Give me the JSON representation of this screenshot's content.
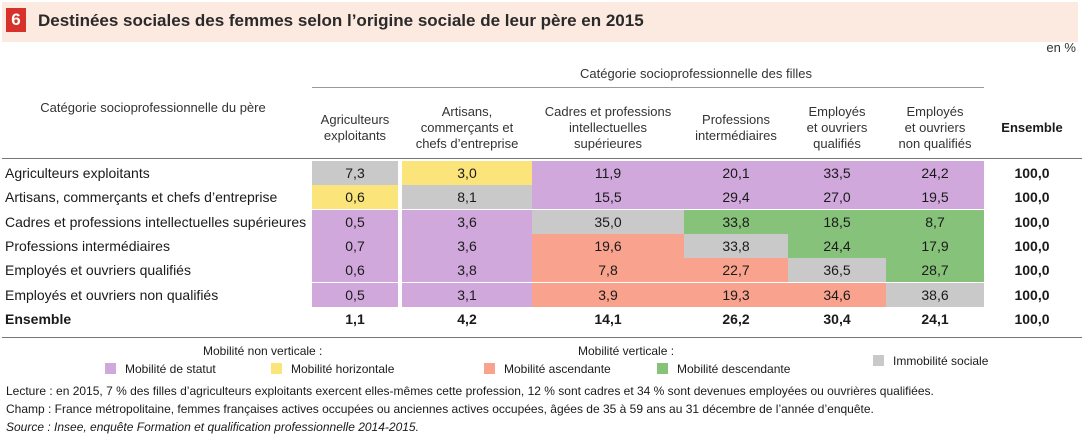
{
  "figure": {
    "number": "6",
    "title": "Destinées sociales des femmes selon l’origine sociale de leur père en 2015",
    "unit": "en %"
  },
  "colors": {
    "statut": "#d0a8dc",
    "horizontale": "#fbe57a",
    "ascendante": "#f9a38e",
    "descendante": "#86c27a",
    "immobilite": "#c9c9c9",
    "title_bg": "#fce9e0",
    "badge": "#d6312b"
  },
  "chart_data": {
    "type": "table",
    "title": "Destinées sociales des femmes selon l’origine sociale de leur père en 2015",
    "group_header": "Catégorie socioprofessionnelle des filles",
    "row_header": "Catégorie socioprofessionnelle du père",
    "columns": [
      "Agriculteurs\nexploitants",
      "Artisans,\ncommerçants et\nchefs d’entreprise",
      "Cadres et professions\nintellectuelles\nsupérieures",
      "Professions\nintermédiaires",
      "Employés\net ouvriers\nqualifiés",
      "Employés\net ouvriers\nnon qualifiés",
      "Ensemble"
    ],
    "rows": [
      {
        "label": "Agriculteurs exploitants",
        "values": [
          "7,3",
          "3,0",
          "11,9",
          "20,1",
          "33,5",
          "24,2",
          "100,0"
        ],
        "mobility": [
          "immobilite",
          "horizontale",
          "statut",
          "statut",
          "statut",
          "statut",
          ""
        ]
      },
      {
        "label": "Artisans, commerçants et chefs d’entreprise",
        "values": [
          "0,6",
          "8,1",
          "15,5",
          "29,4",
          "27,0",
          "19,5",
          "100,0"
        ],
        "mobility": [
          "horizontale",
          "immobilite",
          "statut",
          "statut",
          "statut",
          "statut",
          ""
        ]
      },
      {
        "label": "Cadres et professions intellectuelles supérieures",
        "values": [
          "0,5",
          "3,6",
          "35,0",
          "33,8",
          "18,5",
          "8,7",
          "100,0"
        ],
        "mobility": [
          "statut",
          "statut",
          "immobilite",
          "descendante",
          "descendante",
          "descendante",
          ""
        ]
      },
      {
        "label": "Professions intermédiaires",
        "values": [
          "0,7",
          "3,6",
          "19,6",
          "33,8",
          "24,4",
          "17,9",
          "100,0"
        ],
        "mobility": [
          "statut",
          "statut",
          "ascendante",
          "immobilite",
          "descendante",
          "descendante",
          ""
        ]
      },
      {
        "label": "Employés et ouvriers qualifiés",
        "values": [
          "0,6",
          "3,8",
          "7,8",
          "22,7",
          "36,5",
          "28,7",
          "100,0"
        ],
        "mobility": [
          "statut",
          "statut",
          "ascendante",
          "ascendante",
          "immobilite",
          "descendante",
          ""
        ]
      },
      {
        "label": "Employés et ouvriers non qualifiés",
        "values": [
          "0,5",
          "3,1",
          "3,9",
          "19,3",
          "34,6",
          "38,6",
          "100,0"
        ],
        "mobility": [
          "statut",
          "statut",
          "ascendante",
          "ascendante",
          "ascendante",
          "immobilite",
          ""
        ]
      },
      {
        "label": "Ensemble",
        "values": [
          "1,1",
          "4,2",
          "14,1",
          "26,2",
          "30,4",
          "24,1",
          "100,0"
        ],
        "mobility": [
          "",
          "",
          "",
          "",
          "",
          "",
          ""
        ],
        "bold": true
      }
    ]
  },
  "legend": {
    "non_verticale_title": "Mobilité non verticale :",
    "verticale_title": "Mobilité verticale :",
    "items": [
      {
        "key": "statut",
        "label": "Mobilité de statut"
      },
      {
        "key": "horizontale",
        "label": "Mobilité horizontale"
      },
      {
        "key": "ascendante",
        "label": "Mobilité ascendante"
      },
      {
        "key": "descendante",
        "label": "Mobilité descendante"
      },
      {
        "key": "immobilite",
        "label": "Immobilité sociale"
      }
    ]
  },
  "notes": {
    "lecture": "Lecture : en 2015, 7 % des filles d’agriculteurs exploitants exercent elles-mêmes cette profession, 12 % sont cadres et 34 % sont devenues employées ou ouvrières qualifiées.",
    "champ": "Champ : France métropolitaine, femmes françaises actives occupées ou anciennes actives occupées, âgées de 35 à 59 ans au 31 décembre de l’année d’enquête.",
    "source": "Source : Insee, enquête Formation et qualification professionnelle 2014-2015."
  }
}
